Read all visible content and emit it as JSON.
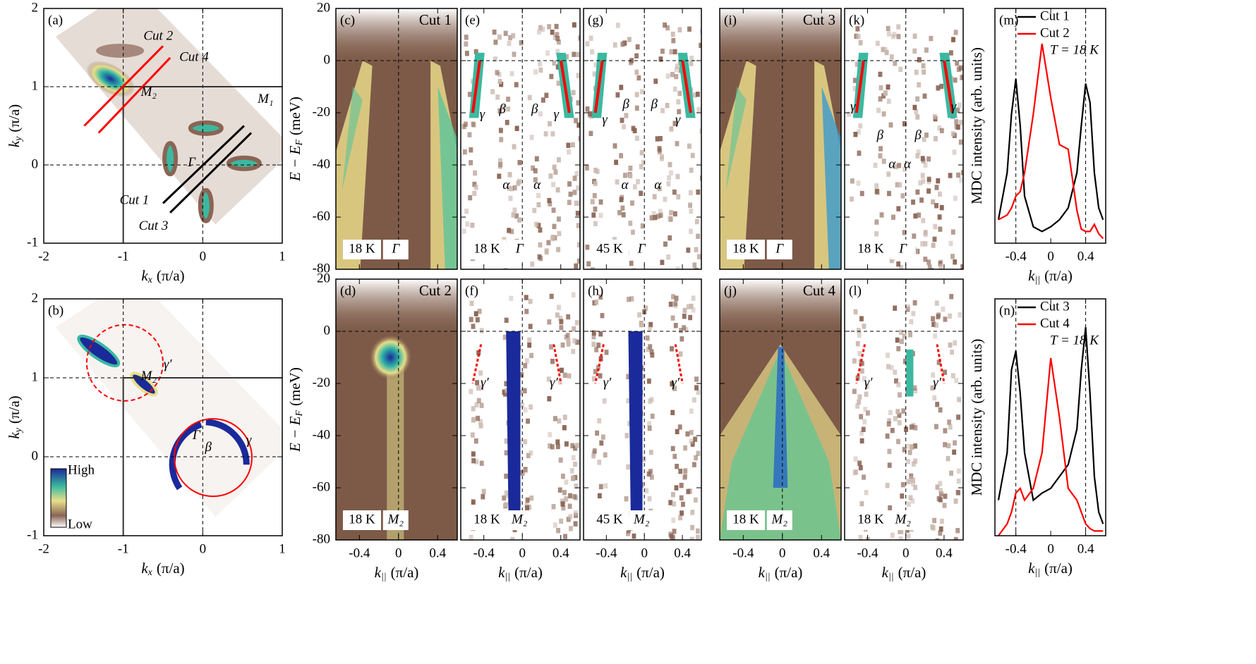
{
  "chart_data": [
    {
      "type": "map",
      "label": "(a)",
      "xlim": [
        -2,
        1
      ],
      "ylim": [
        -1,
        2
      ],
      "xticks": [
        -2,
        -1,
        0,
        1
      ],
      "yticks": [
        -1,
        0,
        1,
        2
      ],
      "xtick_labels": true,
      "ytick_labels": true,
      "xlabel": {
        "symbol": "k",
        "sub": "x",
        "unit": "(π/a)"
      },
      "ylabel": {
        "symbol": "k",
        "sub": "y",
        "unit": "(π/a)"
      },
      "annotations": [
        "Cut 2",
        "Cut 4",
        "M₂",
        "M₁",
        "Γ",
        "Cut 1",
        "Cut 3"
      ]
    },
    {
      "type": "map",
      "label": "(b)",
      "xlim": [
        -2,
        1
      ],
      "ylim": [
        -1,
        2
      ],
      "xticks": [
        -2,
        -1,
        0,
        1
      ],
      "yticks": [
        -1,
        0,
        1,
        2
      ],
      "xtick_labels": true,
      "ytick_labels": true,
      "xlabel": {
        "symbol": "k",
        "sub": "x",
        "unit": "(π/a)"
      },
      "ylabel": {
        "symbol": "k",
        "sub": "y",
        "unit": "(π/a)"
      },
      "annotations": [
        "γ′",
        "M₂",
        "Γ",
        "β",
        "γ"
      ],
      "colorbar": [
        "High",
        "Low"
      ]
    },
    {
      "type": "heatmap",
      "label": "(c)",
      "title": "Cut 1",
      "temperature": "18 K",
      "point": "Γ",
      "xlim": [
        -0.64,
        0.6
      ],
      "ylim": [
        -80,
        20
      ],
      "xticks": [
        -0.4,
        0,
        0.4
      ],
      "yticks": [
        -80,
        -60,
        -40,
        -20,
        0,
        20
      ],
      "xtick_labels": false,
      "ytick_labels": true,
      "ylabel": {
        "symbol": "E − E",
        "sub": "F",
        "unit": "(meV)"
      },
      "annotations": []
    },
    {
      "type": "heatmap",
      "label": "(d)",
      "title": "Cut 2",
      "temperature": "18 K",
      "point": "M₂",
      "xlim": [
        -0.64,
        0.6
      ],
      "ylim": [
        -80,
        20
      ],
      "xticks": [
        -0.4,
        0,
        0.4
      ],
      "yticks": [
        -80,
        -60,
        -40,
        -20,
        0,
        20
      ],
      "xtick_labels": true,
      "ytick_labels": true,
      "xlabel": {
        "symbol": "k",
        "sub": "||",
        "unit": "(π/a)"
      },
      "ylabel": {
        "symbol": "E − E",
        "sub": "F",
        "unit": "(meV)"
      },
      "annotations": []
    },
    {
      "type": "heatmap",
      "label": "(e)",
      "temperature": "18 K",
      "point": "Γ",
      "xlim": [
        -0.64,
        0.6
      ],
      "ylim": [
        -80,
        20
      ],
      "xticks": [
        -0.4,
        0,
        0.4
      ],
      "yticks": [
        -80,
        -60,
        -40,
        -20,
        0,
        20
      ],
      "xtick_labels": false,
      "ytick_labels": false,
      "annotations": [
        "γ",
        "β",
        "β",
        "γ",
        "α",
        "α"
      ]
    },
    {
      "type": "heatmap",
      "label": "(f)",
      "temperature": "18 K",
      "point": "M₂",
      "xlim": [
        -0.64,
        0.6
      ],
      "ylim": [
        -80,
        20
      ],
      "xticks": [
        -0.4,
        0,
        0.4
      ],
      "yticks": [
        -80,
        -60,
        -40,
        -20,
        0,
        20
      ],
      "xtick_labels": true,
      "ytick_labels": false,
      "xlabel": {
        "symbol": "k",
        "sub": "||",
        "unit": "(π/a)"
      },
      "annotations": [
        "γ′",
        "γ′"
      ]
    },
    {
      "type": "heatmap",
      "label": "(g)",
      "temperature": "45 K",
      "point": "Γ",
      "xlim": [
        -0.64,
        0.6
      ],
      "ylim": [
        -80,
        20
      ],
      "xticks": [
        -0.4,
        0,
        0.4
      ],
      "yticks": [
        -80,
        -60,
        -40,
        -20,
        0,
        20
      ],
      "xtick_labels": false,
      "ytick_labels": false,
      "annotations": [
        "γ",
        "β",
        "β",
        "γ",
        "α",
        "α"
      ]
    },
    {
      "type": "heatmap",
      "label": "(h)",
      "temperature": "45 K",
      "point": "M₂",
      "xlim": [
        -0.64,
        0.6
      ],
      "ylim": [
        -80,
        20
      ],
      "xticks": [
        -0.4,
        0,
        0.4
      ],
      "yticks": [
        -80,
        -60,
        -40,
        -20,
        0,
        20
      ],
      "xtick_labels": true,
      "ytick_labels": false,
      "xlabel": {
        "symbol": "k",
        "sub": "||",
        "unit": "(π/a)"
      },
      "annotations": [
        "γ′",
        "γ′"
      ]
    },
    {
      "type": "heatmap",
      "label": "(i)",
      "title": "Cut 3",
      "temperature": "18 K",
      "point": "Γ",
      "xlim": [
        -0.64,
        0.6
      ],
      "ylim": [
        -80,
        20
      ],
      "xticks": [
        -0.4,
        0,
        0.4
      ],
      "yticks": [
        -80,
        -60,
        -40,
        -20,
        0,
        20
      ],
      "xtick_labels": false,
      "ytick_labels": false,
      "annotations": []
    },
    {
      "type": "heatmap",
      "label": "(j)",
      "title": "Cut 4",
      "temperature": "18 K",
      "point": "M₂",
      "xlim": [
        -0.64,
        0.6
      ],
      "ylim": [
        -80,
        20
      ],
      "xticks": [
        -0.4,
        0,
        0.4
      ],
      "yticks": [
        -80,
        -60,
        -40,
        -20,
        0,
        20
      ],
      "xtick_labels": true,
      "ytick_labels": false,
      "xlabel": {
        "symbol": "k",
        "sub": "||",
        "unit": "(π/a)"
      },
      "annotations": []
    },
    {
      "type": "heatmap",
      "label": "(k)",
      "temperature": "18 K",
      "point": "Γ",
      "xlim": [
        -0.64,
        0.6
      ],
      "ylim": [
        -80,
        20
      ],
      "xticks": [
        -0.4,
        0,
        0.4
      ],
      "yticks": [
        -80,
        -60,
        -40,
        -20,
        0,
        20
      ],
      "xtick_labels": false,
      "ytick_labels": false,
      "annotations": [
        "γ",
        "β",
        "β",
        "γ",
        "α",
        "α"
      ]
    },
    {
      "type": "heatmap",
      "label": "(l)",
      "temperature": "18 K",
      "point": "M₂",
      "xlim": [
        -0.64,
        0.6
      ],
      "ylim": [
        -80,
        20
      ],
      "xticks": [
        -0.4,
        0,
        0.4
      ],
      "yticks": [
        -80,
        -60,
        -40,
        -20,
        0,
        20
      ],
      "xtick_labels": true,
      "ytick_labels": false,
      "xlabel": {
        "symbol": "k",
        "sub": "||",
        "unit": "(π/a)"
      },
      "annotations": [
        "γ′",
        "γ′"
      ]
    },
    {
      "type": "line",
      "label": "(m)",
      "xlim": [
        -0.64,
        0.63
      ],
      "ylim": [
        0,
        1
      ],
      "xticks": [
        -0.4,
        0,
        0.4
      ],
      "xtick_labels": true,
      "xlabel": {
        "symbol": "k",
        "sub": "||",
        "unit": "(π/a)"
      },
      "ylabel_text": "MDC intensity (arb. units)",
      "note": "T = 18 K",
      "x": [
        -0.6,
        -0.5,
        -0.45,
        -0.4,
        -0.35,
        -0.3,
        -0.2,
        -0.1,
        0,
        0.1,
        0.2,
        0.3,
        0.35,
        0.4,
        0.45,
        0.5,
        0.55,
        0.6
      ],
      "series": [
        {
          "name": "Cut 1",
          "color": "#000000",
          "values": [
            0.1,
            0.3,
            0.55,
            0.7,
            0.5,
            0.2,
            0.07,
            0.05,
            0.07,
            0.1,
            0.15,
            0.3,
            0.5,
            0.68,
            0.6,
            0.3,
            0.15,
            0.1
          ]
        },
        {
          "name": "Cut 2",
          "color": "#ff0000",
          "values": [
            0.1,
            0.12,
            0.15,
            0.2,
            0.22,
            0.3,
            0.55,
            0.85,
            0.62,
            0.42,
            0.4,
            0.14,
            0.06,
            0.05,
            0.05,
            0.08,
            0.04,
            0.02
          ]
        }
      ]
    },
    {
      "type": "line",
      "label": "(n)",
      "xlim": [
        -0.64,
        0.63
      ],
      "ylim": [
        0,
        1
      ],
      "xticks": [
        -0.4,
        0,
        0.4
      ],
      "xtick_labels": true,
      "xlabel": {
        "symbol": "k",
        "sub": "||",
        "unit": "(π/a)"
      },
      "ylabel_text": "MDC intensity (arb. units)",
      "note": "T = 18 K",
      "x": [
        -0.6,
        -0.5,
        -0.45,
        -0.4,
        -0.35,
        -0.3,
        -0.2,
        -0.1,
        0,
        0.1,
        0.2,
        0.3,
        0.35,
        0.4,
        0.45,
        0.5,
        0.55,
        0.6
      ],
      "series": [
        {
          "name": "Cut 3",
          "color": "#000000",
          "values": [
            0.15,
            0.35,
            0.7,
            0.78,
            0.6,
            0.35,
            0.15,
            0.18,
            0.2,
            0.25,
            0.3,
            0.45,
            0.7,
            0.88,
            0.6,
            0.25,
            0.1,
            0.05
          ]
        },
        {
          "name": "Cut 4",
          "color": "#ff0000",
          "values": [
            0.0,
            0.05,
            0.1,
            0.18,
            0.2,
            0.15,
            0.2,
            0.35,
            0.75,
            0.5,
            0.2,
            0.15,
            0.1,
            0.05,
            0.03,
            0.02,
            0.02,
            0.02
          ]
        }
      ]
    }
  ]
}
